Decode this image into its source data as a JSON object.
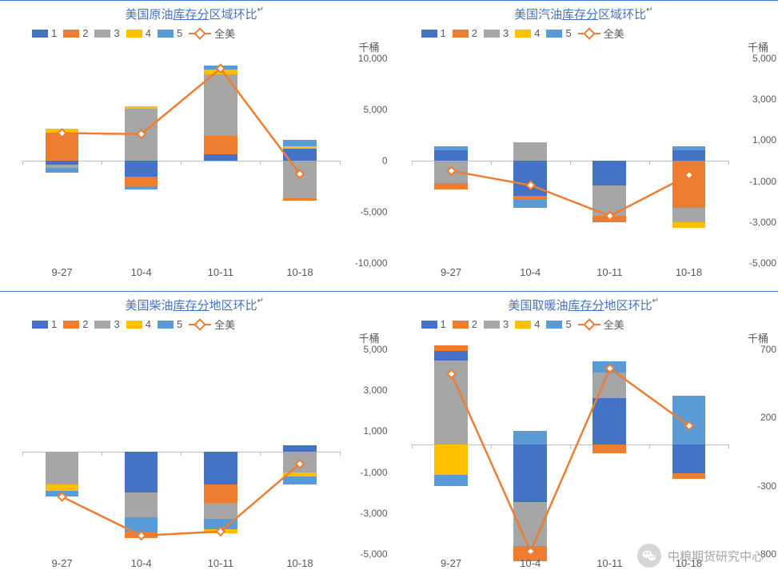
{
  "colors": {
    "series": [
      "#4472c4",
      "#ed7d31",
      "#a6a6a6",
      "#ffc000",
      "#5b9bd5"
    ],
    "line": "#ed7d31",
    "grid": "#bfbfbf",
    "title": "#4472c4",
    "text": "#595959",
    "background": "#ffffff"
  },
  "legend_labels": [
    "1",
    "2",
    "3",
    "4",
    "5"
  ],
  "line_label": "全美",
  "y_unit_label": "千桶",
  "watermark": "中粮期货研究中心",
  "panels": [
    {
      "title_plain": "美国原油",
      "title_underline": "库存分",
      "title_tail": "区域环比",
      "footnote": "↵",
      "categories": [
        "9-27",
        "10-4",
        "10-11",
        "10-18"
      ],
      "ymin": -10000,
      "ymax": 10000,
      "ystep": 5000,
      "bar_width": 0.42,
      "stacks": [
        {
          "pos": [
            {
              "c": 1,
              "v": 2700
            },
            {
              "c": 3,
              "v": 400
            }
          ],
          "neg": [
            {
              "c": 0,
              "v": -400
            },
            {
              "c": 2,
              "v": -300
            },
            {
              "c": 4,
              "v": -500
            }
          ]
        },
        {
          "pos": [
            {
              "c": 2,
              "v": 5100
            },
            {
              "c": 3,
              "v": 200
            }
          ],
          "neg": [
            {
              "c": 0,
              "v": -1600
            },
            {
              "c": 1,
              "v": -900
            },
            {
              "c": 4,
              "v": -300
            }
          ]
        },
        {
          "pos": [
            {
              "c": 0,
              "v": 600
            },
            {
              "c": 1,
              "v": 1800
            },
            {
              "c": 2,
              "v": 6000
            },
            {
              "c": 3,
              "v": 500
            },
            {
              "c": 4,
              "v": 400
            }
          ],
          "neg": []
        },
        {
          "pos": [
            {
              "c": 0,
              "v": 1200
            },
            {
              "c": 3,
              "v": 200
            },
            {
              "c": 4,
              "v": 600
            }
          ],
          "neg": [
            {
              "c": 2,
              "v": -3700
            },
            {
              "c": 1,
              "v": -200
            }
          ]
        }
      ],
      "line_values": [
        2700,
        2600,
        9000,
        -1300
      ]
    },
    {
      "title_plain": "美国汽油",
      "title_underline": "库存分",
      "title_tail": "区域环比",
      "footnote": "↵",
      "categories": [
        "9-27",
        "10-4",
        "10-11",
        "10-18"
      ],
      "ymin": -5000,
      "ymax": 5000,
      "ystep": 2000,
      "bar_width": 0.42,
      "stacks": [
        {
          "pos": [
            {
              "c": 0,
              "v": 500
            },
            {
              "c": 4,
              "v": 200
            }
          ],
          "neg": [
            {
              "c": 2,
              "v": -1100
            },
            {
              "c": 1,
              "v": -300
            }
          ]
        },
        {
          "pos": [
            {
              "c": 2,
              "v": 900
            }
          ],
          "neg": [
            {
              "c": 0,
              "v": -1700
            },
            {
              "c": 1,
              "v": -200
            },
            {
              "c": 4,
              "v": -400
            }
          ]
        },
        {
          "pos": [],
          "neg": [
            {
              "c": 0,
              "v": -1200
            },
            {
              "c": 2,
              "v": -1500
            },
            {
              "c": 1,
              "v": -300
            }
          ]
        },
        {
          "pos": [
            {
              "c": 0,
              "v": 500
            },
            {
              "c": 4,
              "v": 200
            }
          ],
          "neg": [
            {
              "c": 1,
              "v": -2300
            },
            {
              "c": 2,
              "v": -700
            },
            {
              "c": 3,
              "v": -300
            }
          ]
        }
      ],
      "line_values": [
        -500,
        -1200,
        -2700,
        -700
      ]
    },
    {
      "title_plain": "美国柴油",
      "title_underline": "库存分",
      "title_tail": "地区环比",
      "footnote": "↵",
      "categories": [
        "9-27",
        "10-4",
        "10-11",
        "10-18"
      ],
      "ymin": -5000,
      "ymax": 5000,
      "ystep": 2000,
      "bar_width": 0.42,
      "stacks": [
        {
          "pos": [],
          "neg": [
            {
              "c": 2,
              "v": -1600
            },
            {
              "c": 3,
              "v": -300
            },
            {
              "c": 4,
              "v": -300
            }
          ]
        },
        {
          "pos": [],
          "neg": [
            {
              "c": 0,
              "v": -2000
            },
            {
              "c": 2,
              "v": -1200
            },
            {
              "c": 4,
              "v": -700
            },
            {
              "c": 1,
              "v": -300
            }
          ]
        },
        {
          "pos": [],
          "neg": [
            {
              "c": 0,
              "v": -1600
            },
            {
              "c": 1,
              "v": -900
            },
            {
              "c": 2,
              "v": -800
            },
            {
              "c": 4,
              "v": -500
            },
            {
              "c": 3,
              "v": -200
            }
          ]
        },
        {
          "pos": [
            {
              "c": 0,
              "v": 300
            }
          ],
          "neg": [
            {
              "c": 2,
              "v": -1000
            },
            {
              "c": 3,
              "v": -200
            },
            {
              "c": 4,
              "v": -400
            }
          ]
        }
      ],
      "line_values": [
        -2200,
        -4100,
        -3900,
        -600
      ]
    },
    {
      "title_plain": "美国取暖油",
      "title_underline": "库存分",
      "title_tail": "地区环比",
      "footnote": "↵",
      "categories": [
        "9-27",
        "10-4",
        "10-11",
        "10-18"
      ],
      "ymin": -800,
      "ymax": 700,
      "ystep": 500,
      "bar_width": 0.42,
      "stacks": [
        {
          "pos": [
            {
              "c": 2,
              "v": 620
            },
            {
              "c": 0,
              "v": 70
            },
            {
              "c": 1,
              "v": 40
            }
          ],
          "neg": [
            {
              "c": 3,
              "v": -220
            },
            {
              "c": 4,
              "v": -80
            }
          ]
        },
        {
          "pos": [
            {
              "c": 4,
              "v": 100
            }
          ],
          "neg": [
            {
              "c": 0,
              "v": -420
            },
            {
              "c": 2,
              "v": -320
            },
            {
              "c": 1,
              "v": -110
            }
          ]
        },
        {
          "pos": [
            {
              "c": 0,
              "v": 340
            },
            {
              "c": 2,
              "v": 190
            },
            {
              "c": 4,
              "v": 80
            }
          ],
          "neg": [
            {
              "c": 1,
              "v": -60
            }
          ]
        },
        {
          "pos": [
            {
              "c": 4,
              "v": 360
            }
          ],
          "neg": [
            {
              "c": 0,
              "v": -210
            },
            {
              "c": 1,
              "v": -40
            }
          ]
        }
      ],
      "line_values": [
        520,
        -780,
        560,
        140
      ]
    }
  ]
}
